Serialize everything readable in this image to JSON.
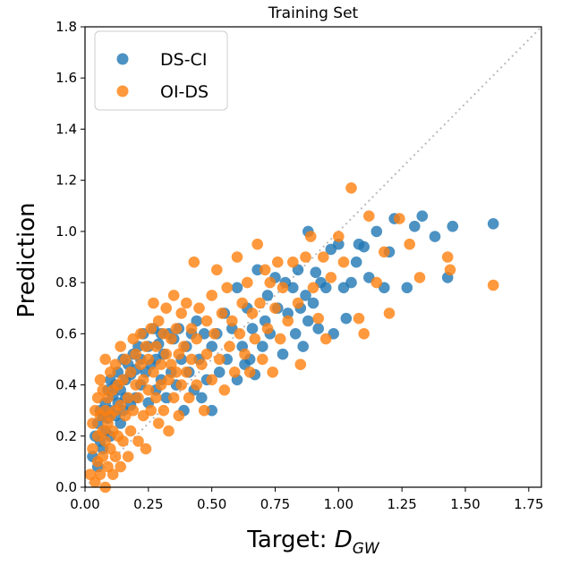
{
  "chart_data": {
    "type": "scatter",
    "title": "Training Set",
    "xlabel_prefix": "Target: ",
    "xlabel_symbol": "D",
    "xlabel_sub": "GW",
    "ylabel": "Prediction",
    "xlim": [
      0,
      1.8
    ],
    "ylim": [
      0,
      1.8
    ],
    "xticks": [
      0.0,
      0.25,
      0.5,
      0.75,
      1.0,
      1.25,
      1.5,
      1.75
    ],
    "yticks": [
      0.0,
      0.2,
      0.4,
      0.6,
      0.8,
      1.0,
      1.2,
      1.4,
      1.6,
      1.8
    ],
    "xtick_labels": [
      "0.00",
      "0.25",
      "0.50",
      "0.75",
      "1.00",
      "1.25",
      "1.50",
      "1.75"
    ],
    "ytick_labels": [
      "0.0",
      "0.2",
      "0.4",
      "0.6",
      "0.8",
      "1.0",
      "1.2",
      "1.4",
      "1.6",
      "1.8"
    ],
    "legend": {
      "position": "top-left",
      "items": [
        {
          "label": "DS-CI",
          "color": "#1f77b4"
        },
        {
          "label": "OI-DS",
          "color": "#ff7f0e"
        }
      ]
    },
    "reference_line": {
      "type": "identity",
      "color": "#bbbbbb",
      "style": "dotted"
    },
    "series": [
      {
        "name": "DS-CI",
        "color": "#1f77b4",
        "points": [
          [
            0.03,
            0.12
          ],
          [
            0.04,
            0.2
          ],
          [
            0.05,
            0.25
          ],
          [
            0.05,
            0.08
          ],
          [
            0.06,
            0.3
          ],
          [
            0.06,
            0.18
          ],
          [
            0.07,
            0.28
          ],
          [
            0.07,
            0.15
          ],
          [
            0.08,
            0.33
          ],
          [
            0.08,
            0.22
          ],
          [
            0.09,
            0.38
          ],
          [
            0.09,
            0.27
          ],
          [
            0.1,
            0.42
          ],
          [
            0.1,
            0.3
          ],
          [
            0.1,
            0.2
          ],
          [
            0.11,
            0.36
          ],
          [
            0.12,
            0.4
          ],
          [
            0.12,
            0.28
          ],
          [
            0.13,
            0.45
          ],
          [
            0.13,
            0.33
          ],
          [
            0.14,
            0.38
          ],
          [
            0.14,
            0.25
          ],
          [
            0.15,
            0.5
          ],
          [
            0.15,
            0.3
          ],
          [
            0.16,
            0.42
          ],
          [
            0.16,
            0.35
          ],
          [
            0.17,
            0.48
          ],
          [
            0.18,
            0.44
          ],
          [
            0.18,
            0.32
          ],
          [
            0.19,
            0.52
          ],
          [
            0.2,
            0.46
          ],
          [
            0.2,
            0.35
          ],
          [
            0.21,
            0.55
          ],
          [
            0.22,
            0.5
          ],
          [
            0.22,
            0.4
          ],
          [
            0.23,
            0.6
          ],
          [
            0.24,
            0.45
          ],
          [
            0.25,
            0.55
          ],
          [
            0.25,
            0.33
          ],
          [
            0.26,
            0.48
          ],
          [
            0.27,
            0.62
          ],
          [
            0.28,
            0.5
          ],
          [
            0.28,
            0.38
          ],
          [
            0.29,
            0.56
          ],
          [
            0.3,
            0.6
          ],
          [
            0.3,
            0.42
          ],
          [
            0.31,
            0.52
          ],
          [
            0.32,
            0.35
          ],
          [
            0.33,
            0.6
          ],
          [
            0.34,
            0.45
          ],
          [
            0.35,
            0.58
          ],
          [
            0.36,
            0.4
          ],
          [
            0.37,
            0.62
          ],
          [
            0.38,
            0.5
          ],
          [
            0.39,
            0.3
          ],
          [
            0.4,
            0.55
          ],
          [
            0.41,
            0.45
          ],
          [
            0.42,
            0.6
          ],
          [
            0.43,
            0.38
          ],
          [
            0.44,
            0.65
          ],
          [
            0.45,
            0.5
          ],
          [
            0.46,
            0.35
          ],
          [
            0.47,
            0.6
          ],
          [
            0.48,
            0.42
          ],
          [
            0.5,
            0.55
          ],
          [
            0.5,
            0.3
          ],
          [
            0.52,
            0.6
          ],
          [
            0.53,
            0.45
          ],
          [
            0.55,
            0.68
          ],
          [
            0.56,
            0.5
          ],
          [
            0.58,
            0.62
          ],
          [
            0.6,
            0.42
          ],
          [
            0.6,
            0.78
          ],
          [
            0.62,
            0.55
          ],
          [
            0.63,
            0.48
          ],
          [
            0.64,
            0.7
          ],
          [
            0.65,
            0.5
          ],
          [
            0.66,
            0.62
          ],
          [
            0.67,
            0.44
          ],
          [
            0.68,
            0.85
          ],
          [
            0.7,
            0.55
          ],
          [
            0.71,
            0.65
          ],
          [
            0.72,
            0.75
          ],
          [
            0.73,
            0.6
          ],
          [
            0.75,
            0.82
          ],
          [
            0.76,
            0.7
          ],
          [
            0.78,
            0.52
          ],
          [
            0.79,
            0.8
          ],
          [
            0.8,
            0.68
          ],
          [
            0.82,
            0.78
          ],
          [
            0.83,
            0.6
          ],
          [
            0.84,
            0.85
          ],
          [
            0.85,
            0.7
          ],
          [
            0.86,
            0.55
          ],
          [
            0.87,
            0.75
          ],
          [
            0.88,
            0.65
          ],
          [
            0.88,
            1.0
          ],
          [
            0.9,
            0.72
          ],
          [
            0.91,
            0.84
          ],
          [
            0.92,
            0.62
          ],
          [
            0.93,
            0.8
          ],
          [
            0.95,
            0.78
          ],
          [
            0.97,
            0.93
          ],
          [
            0.98,
            0.6
          ],
          [
            1.0,
            0.95
          ],
          [
            1.02,
            0.78
          ],
          [
            1.03,
            0.66
          ],
          [
            1.05,
            0.8
          ],
          [
            1.07,
            0.88
          ],
          [
            1.08,
            0.95
          ],
          [
            1.1,
            0.94
          ],
          [
            1.12,
            0.82
          ],
          [
            1.15,
            1.0
          ],
          [
            1.18,
            0.78
          ],
          [
            1.2,
            0.92
          ],
          [
            1.22,
            1.05
          ],
          [
            1.27,
            0.78
          ],
          [
            1.3,
            1.02
          ],
          [
            1.33,
            1.06
          ],
          [
            1.38,
            0.98
          ],
          [
            1.43,
            0.82
          ],
          [
            1.45,
            1.02
          ],
          [
            1.61,
            1.03
          ]
        ]
      },
      {
        "name": "OI-DS",
        "color": "#ff7f0e",
        "points": [
          [
            0.02,
            0.05
          ],
          [
            0.03,
            0.15
          ],
          [
            0.03,
            0.25
          ],
          [
            0.04,
            0.02
          ],
          [
            0.04,
            0.3
          ],
          [
            0.05,
            0.1
          ],
          [
            0.05,
            0.2
          ],
          [
            0.05,
            0.35
          ],
          [
            0.06,
            0.05
          ],
          [
            0.06,
            0.28
          ],
          [
            0.06,
            0.42
          ],
          [
            0.07,
            0.12
          ],
          [
            0.07,
            0.22
          ],
          [
            0.07,
            0.38
          ],
          [
            0.08,
            0.0
          ],
          [
            0.08,
            0.18
          ],
          [
            0.08,
            0.3
          ],
          [
            0.08,
            0.5
          ],
          [
            0.09,
            0.08
          ],
          [
            0.09,
            0.25
          ],
          [
            0.09,
            0.35
          ],
          [
            0.1,
            0.15
          ],
          [
            0.1,
            0.28
          ],
          [
            0.1,
            0.45
          ],
          [
            0.11,
            0.05
          ],
          [
            0.11,
            0.22
          ],
          [
            0.11,
            0.38
          ],
          [
            0.12,
            0.12
          ],
          [
            0.12,
            0.3
          ],
          [
            0.12,
            0.48
          ],
          [
            0.13,
            0.2
          ],
          [
            0.13,
            0.4
          ],
          [
            0.14,
            0.08
          ],
          [
            0.14,
            0.32
          ],
          [
            0.14,
            0.55
          ],
          [
            0.15,
            0.18
          ],
          [
            0.15,
            0.42
          ],
          [
            0.16,
            0.28
          ],
          [
            0.16,
            0.5
          ],
          [
            0.17,
            0.12
          ],
          [
            0.17,
            0.35
          ],
          [
            0.18,
            0.45
          ],
          [
            0.18,
            0.22
          ],
          [
            0.19,
            0.58
          ],
          [
            0.19,
            0.3
          ],
          [
            0.2,
            0.4
          ],
          [
            0.2,
            0.52
          ],
          [
            0.21,
            0.18
          ],
          [
            0.21,
            0.35
          ],
          [
            0.22,
            0.48
          ],
          [
            0.22,
            0.6
          ],
          [
            0.23,
            0.28
          ],
          [
            0.23,
            0.42
          ],
          [
            0.24,
            0.55
          ],
          [
            0.24,
            0.15
          ],
          [
            0.25,
            0.38
          ],
          [
            0.25,
            0.5
          ],
          [
            0.26,
            0.62
          ],
          [
            0.26,
            0.3
          ],
          [
            0.27,
            0.45
          ],
          [
            0.27,
            0.72
          ],
          [
            0.28,
            0.35
          ],
          [
            0.28,
            0.55
          ],
          [
            0.29,
            0.25
          ],
          [
            0.29,
            0.65
          ],
          [
            0.3,
            0.48
          ],
          [
            0.3,
            0.4
          ],
          [
            0.31,
            0.6
          ],
          [
            0.31,
            0.3
          ],
          [
            0.32,
            0.52
          ],
          [
            0.32,
            0.7
          ],
          [
            0.33,
            0.42
          ],
          [
            0.33,
            0.22
          ],
          [
            0.34,
            0.58
          ],
          [
            0.34,
            0.48
          ],
          [
            0.35,
            0.75
          ],
          [
            0.35,
            0.35
          ],
          [
            0.36,
            0.62
          ],
          [
            0.36,
            0.45
          ],
          [
            0.37,
            0.52
          ],
          [
            0.37,
            0.28
          ],
          [
            0.38,
            0.68
          ],
          [
            0.38,
            0.4
          ],
          [
            0.39,
            0.55
          ],
          [
            0.4,
            0.72
          ],
          [
            0.4,
            0.45
          ],
          [
            0.41,
            0.35
          ],
          [
            0.42,
            0.62
          ],
          [
            0.42,
            0.5
          ],
          [
            0.43,
            0.88
          ],
          [
            0.44,
            0.58
          ],
          [
            0.44,
            0.4
          ],
          [
            0.45,
            0.7
          ],
          [
            0.46,
            0.48
          ],
          [
            0.47,
            0.3
          ],
          [
            0.48,
            0.65
          ],
          [
            0.48,
            0.52
          ],
          [
            0.5,
            0.75
          ],
          [
            0.5,
            0.42
          ],
          [
            0.51,
            0.6
          ],
          [
            0.52,
            0.85
          ],
          [
            0.53,
            0.5
          ],
          [
            0.54,
            0.68
          ],
          [
            0.55,
            0.38
          ],
          [
            0.56,
            0.78
          ],
          [
            0.57,
            0.55
          ],
          [
            0.58,
            0.65
          ],
          [
            0.59,
            0.45
          ],
          [
            0.6,
            0.9
          ],
          [
            0.61,
            0.6
          ],
          [
            0.62,
            0.72
          ],
          [
            0.63,
            0.52
          ],
          [
            0.64,
            0.8
          ],
          [
            0.65,
            0.45
          ],
          [
            0.66,
            0.68
          ],
          [
            0.67,
            0.58
          ],
          [
            0.68,
            0.95
          ],
          [
            0.69,
            0.72
          ],
          [
            0.7,
            0.5
          ],
          [
            0.71,
            0.85
          ],
          [
            0.72,
            0.62
          ],
          [
            0.73,
            0.8
          ],
          [
            0.74,
            0.45
          ],
          [
            0.75,
            0.7
          ],
          [
            0.76,
            0.88
          ],
          [
            0.77,
            0.58
          ],
          [
            0.78,
            0.78
          ],
          [
            0.8,
            0.65
          ],
          [
            0.82,
            0.88
          ],
          [
            0.84,
            0.72
          ],
          [
            0.85,
            0.48
          ],
          [
            0.87,
            0.9
          ],
          [
            0.89,
            0.98
          ],
          [
            0.9,
            0.78
          ],
          [
            0.92,
            0.66
          ],
          [
            0.94,
            0.9
          ],
          [
            0.95,
            0.58
          ],
          [
            0.97,
            0.82
          ],
          [
            1.0,
            0.98
          ],
          [
            1.02,
            0.88
          ],
          [
            1.05,
            1.17
          ],
          [
            1.08,
            0.66
          ],
          [
            1.1,
            0.6
          ],
          [
            1.12,
            1.06
          ],
          [
            1.15,
            0.8
          ],
          [
            1.18,
            0.92
          ],
          [
            1.2,
            0.68
          ],
          [
            1.24,
            1.05
          ],
          [
            1.28,
            0.95
          ],
          [
            1.32,
            0.82
          ],
          [
            1.43,
            0.9
          ],
          [
            1.44,
            0.85
          ],
          [
            1.61,
            0.79
          ]
        ]
      }
    ]
  }
}
